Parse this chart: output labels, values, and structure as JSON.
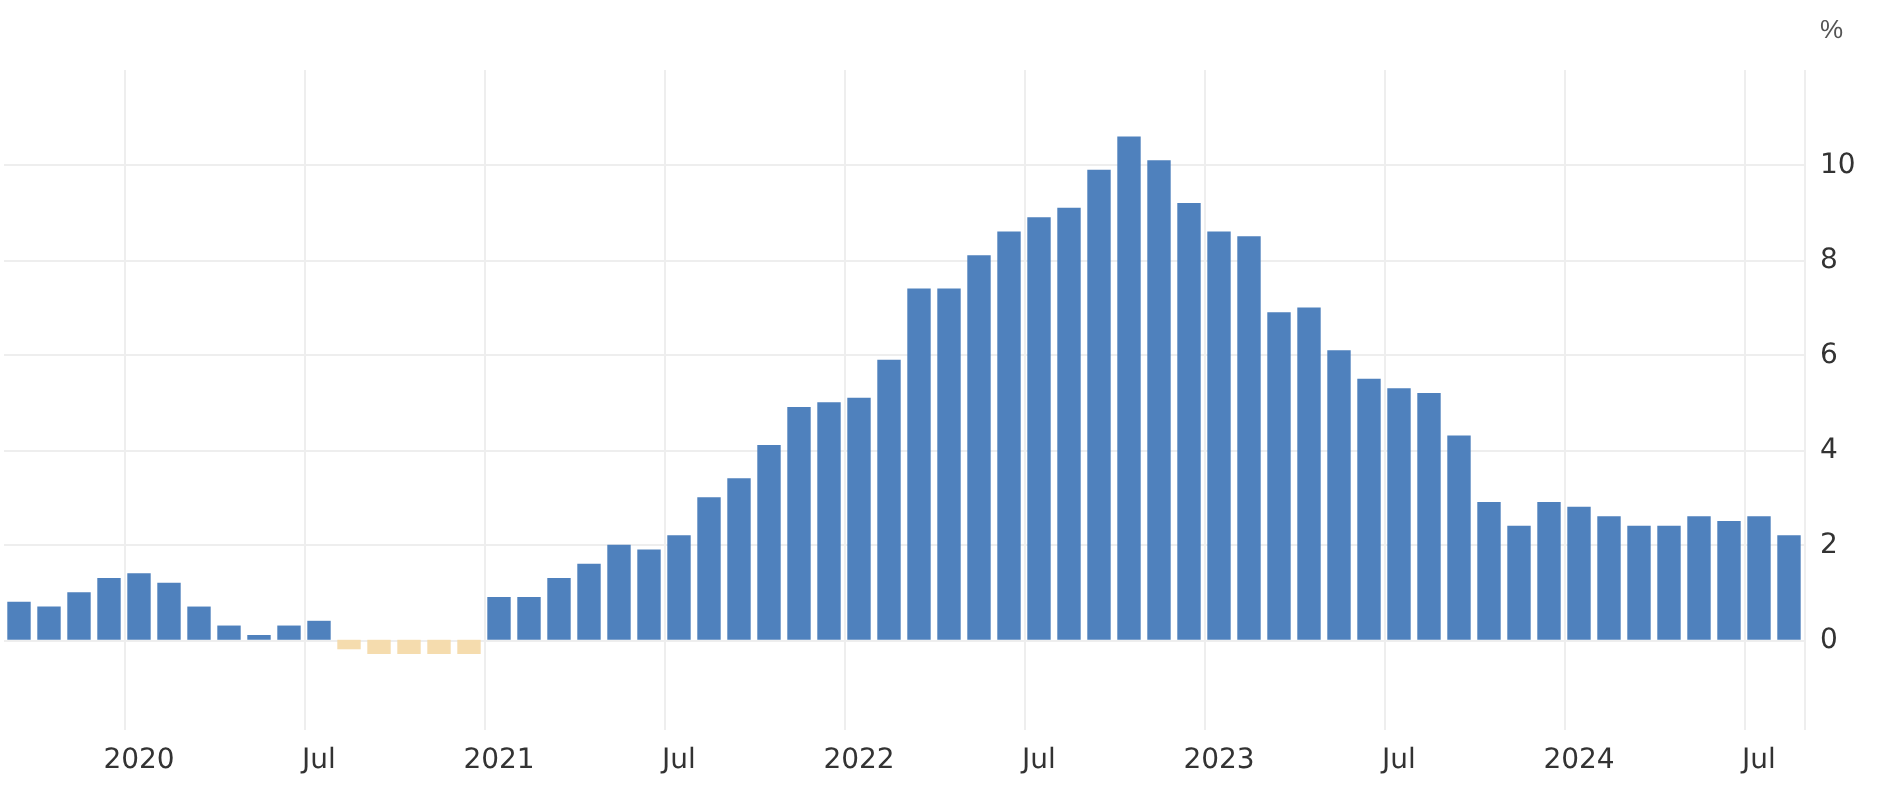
{
  "chart_data": {
    "type": "bar",
    "ylabel": "%",
    "categories": [
      null,
      null,
      null,
      null,
      "2020",
      null,
      null,
      null,
      null,
      null,
      "Jul",
      null,
      null,
      null,
      null,
      null,
      "2021",
      null,
      null,
      null,
      null,
      null,
      "Jul",
      null,
      null,
      null,
      null,
      null,
      "2022",
      null,
      null,
      null,
      null,
      null,
      "Jul",
      null,
      null,
      null,
      null,
      null,
      "2023",
      null,
      null,
      null,
      null,
      null,
      "Jul",
      null,
      null,
      null,
      null,
      null,
      "2024",
      null,
      null,
      null,
      null,
      null,
      "Jul",
      null
    ],
    "values": [
      0.8,
      0.7,
      1.0,
      1.3,
      1.4,
      1.2,
      0.7,
      0.3,
      0.1,
      0.3,
      0.4,
      -0.2,
      -0.3,
      -0.3,
      -0.3,
      -0.3,
      0.9,
      0.9,
      1.3,
      1.6,
      2.0,
      1.9,
      2.2,
      3.0,
      3.4,
      4.1,
      4.9,
      5.0,
      5.1,
      5.9,
      7.4,
      7.4,
      8.1,
      8.6,
      8.9,
      9.1,
      9.9,
      10.6,
      10.1,
      9.2,
      8.6,
      8.5,
      6.9,
      7.0,
      6.1,
      5.5,
      5.3,
      5.2,
      4.3,
      2.9,
      2.4,
      2.9,
      2.8,
      2.6,
      2.4,
      2.4,
      2.6,
      2.5,
      2.6,
      2.2
    ],
    "colors": [
      "#4f81bd",
      "#4f81bd",
      "#4f81bd",
      "#4f81bd",
      "#4f81bd",
      "#4f81bd",
      "#4f81bd",
      "#4f81bd",
      "#4f81bd",
      "#4f81bd",
      "#4f81bd",
      "#f5dcae",
      "#f5dcae",
      "#f5dcae",
      "#f5dcae",
      "#f5dcae",
      "#4f81bd",
      "#4f81bd",
      "#4f81bd",
      "#4f81bd",
      "#4f81bd",
      "#4f81bd",
      "#4f81bd",
      "#4f81bd",
      "#4f81bd",
      "#4f81bd",
      "#4f81bd",
      "#4f81bd",
      "#4f81bd",
      "#4f81bd",
      "#4f81bd",
      "#4f81bd",
      "#4f81bd",
      "#4f81bd",
      "#4f81bd",
      "#4f81bd",
      "#4f81bd",
      "#4f81bd",
      "#4f81bd",
      "#4f81bd",
      "#4f81bd",
      "#4f81bd",
      "#4f81bd",
      "#4f81bd",
      "#4f81bd",
      "#4f81bd",
      "#4f81bd",
      "#4f81bd",
      "#4f81bd",
      "#4f81bd",
      "#4f81bd",
      "#4f81bd",
      "#4f81bd",
      "#4f81bd",
      "#4f81bd",
      "#4f81bd",
      "#4f81bd",
      "#4f81bd",
      "#4f81bd",
      "#4f81bd"
    ],
    "ylim": [
      -1.9,
      12
    ],
    "yticks": [
      0,
      2,
      4,
      6,
      8,
      10
    ],
    "grid": true
  }
}
